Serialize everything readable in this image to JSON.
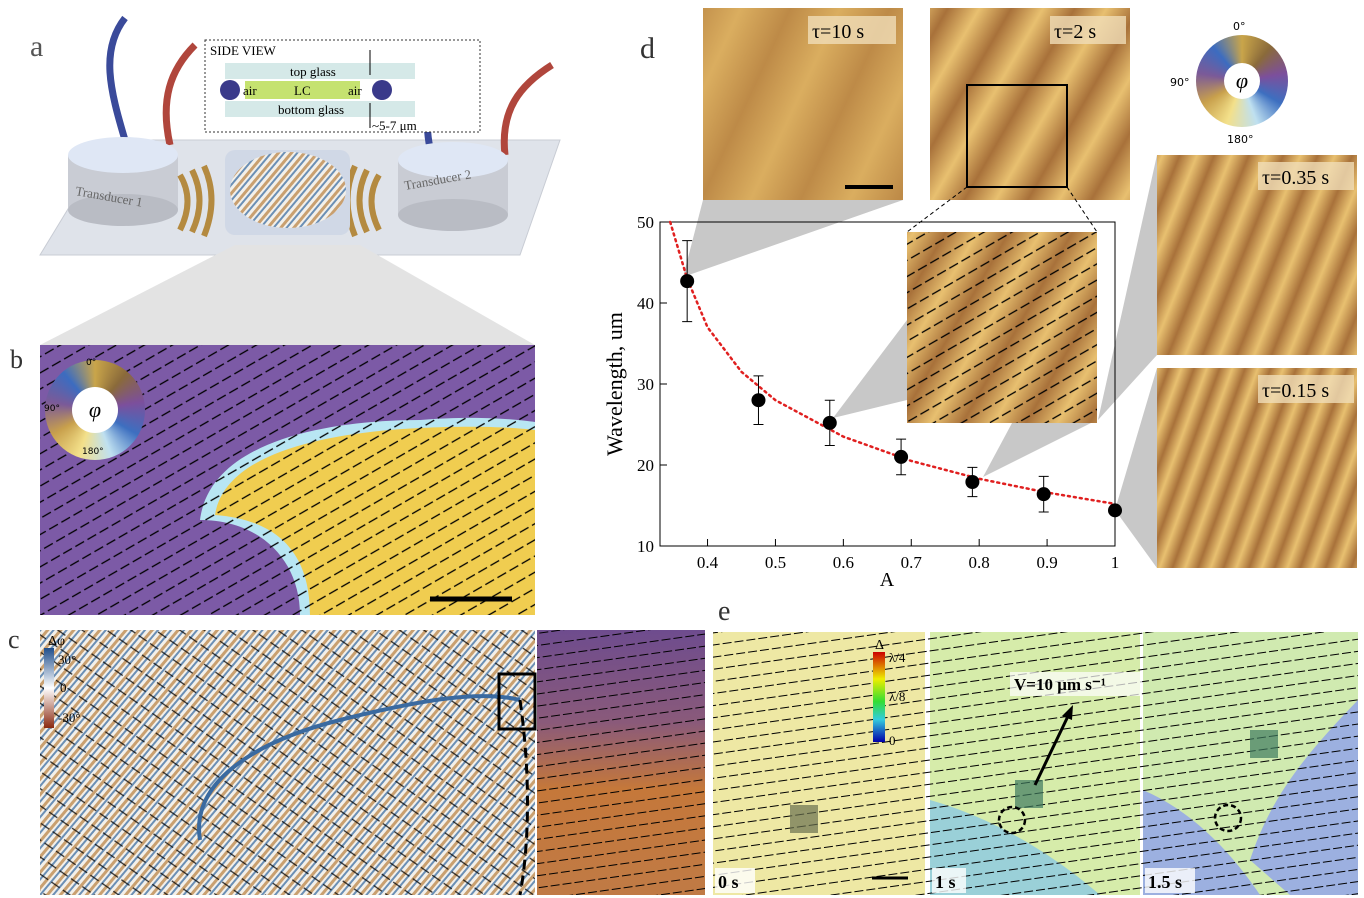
{
  "panels": {
    "a": {
      "label": "a",
      "side_view": "SIDE VIEW",
      "top_glass": "top glass",
      "air_left": "air",
      "lc": "LC",
      "air_right": "air",
      "bottom_glass": "bottom glass",
      "thickness": "~5-7 μm",
      "transducer_1": "Transducer 1",
      "transducer_2": "Transducer 2"
    },
    "b": {
      "label": "b",
      "wheel": [
        "0°",
        "90°",
        "180°"
      ],
      "symbol": "φ"
    },
    "c": {
      "label": "c",
      "colorbar_title": "Δφ",
      "colorbar_ticks": [
        "30°",
        "0",
        "-30°"
      ]
    },
    "d": {
      "label": "d",
      "insets": [
        "τ=10 s",
        "τ=2 s",
        "τ=0.35 s",
        "τ=0.15 s"
      ],
      "wheel": [
        "0°",
        "90°",
        "180°"
      ],
      "symbol": "φ"
    },
    "e": {
      "label": "e",
      "colorbar_title": "Δ",
      "colorbar_ticks": [
        "λ/4",
        "λ/8",
        "0"
      ],
      "velocity": "V=10 μm s⁻¹",
      "times": [
        "0 s",
        "1 s",
        "1.5 s"
      ]
    }
  },
  "chart_data": {
    "type": "scatter",
    "x_label": "A",
    "y_label": "Wavelength, um",
    "xlim": [
      0.33,
      1
    ],
    "ylim": [
      10,
      50
    ],
    "xticks": [
      0.4,
      0.5,
      0.6,
      0.7,
      0.8,
      0.9,
      1
    ],
    "yticks": [
      10,
      20,
      30,
      40,
      50
    ],
    "series": [
      {
        "color": "#000000",
        "x": [
          0.37,
          0.475,
          0.58,
          0.685,
          0.79,
          0.895,
          1
        ],
        "values": [
          42.7,
          28,
          25.2,
          21,
          17.9,
          16.4,
          14.4
        ],
        "errors": [
          5,
          3,
          2.8,
          2.2,
          1.8,
          2.2,
          0
        ]
      },
      {
        "type": "line",
        "style": "dotted",
        "color": "#e02020",
        "x": [
          0.345,
          0.37,
          0.4,
          0.45,
          0.5,
          0.6,
          0.7,
          0.8,
          0.9,
          1
        ],
        "values": [
          50,
          43,
          37,
          31.5,
          28,
          23.5,
          20.5,
          18.3,
          16.6,
          15.2
        ]
      }
    ]
  }
}
